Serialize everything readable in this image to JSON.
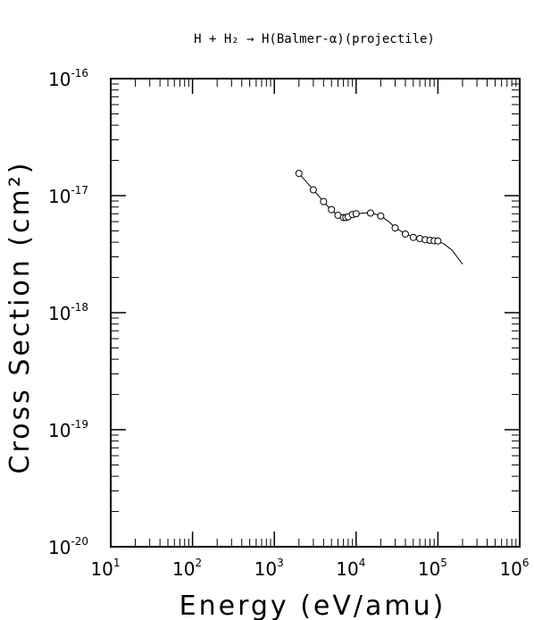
{
  "chart_data": {
    "type": "scatter",
    "title": "H + H₂ → H(Balmer-α)(projectile)",
    "xlabel": "Energy (eV/amu)",
    "ylabel": "Cross Section (cm²)",
    "xscale": "log",
    "yscale": "log",
    "xlim": [
      10,
      1000000
    ],
    "ylim": [
      1e-20,
      1e-16
    ],
    "grid": false,
    "x_ticks": [
      {
        "base": "10",
        "exp": "1",
        "value": 10
      },
      {
        "base": "10",
        "exp": "2",
        "value": 100
      },
      {
        "base": "10",
        "exp": "3",
        "value": 1000
      },
      {
        "base": "10",
        "exp": "4",
        "value": 10000
      },
      {
        "base": "10",
        "exp": "5",
        "value": 100000
      },
      {
        "base": "10",
        "exp": "6",
        "value": 1000000
      }
    ],
    "y_ticks": [
      {
        "base": "10",
        "exp": "-16",
        "value": 1e-16
      },
      {
        "base": "10",
        "exp": "-17",
        "value": 1e-17
      },
      {
        "base": "10",
        "exp": "-18",
        "value": 1e-18
      },
      {
        "base": "10",
        "exp": "-19",
        "value": 1e-19
      },
      {
        "base": "10",
        "exp": "-20",
        "value": 1e-20
      }
    ],
    "series": [
      {
        "kind": "points",
        "x": [
          2000,
          3000,
          4000,
          5000,
          6000,
          7000,
          7500,
          8000,
          9000,
          10000,
          15000,
          20000,
          30000,
          40000,
          50000,
          60000,
          70000,
          80000,
          90000,
          100000
        ],
        "y": [
          1.55e-17,
          1.12e-17,
          8.9e-18,
          7.6e-18,
          6.8e-18,
          6.5e-18,
          6.5e-18,
          6.6e-18,
          6.9e-18,
          7e-18,
          7.1e-18,
          6.7e-18,
          5.3e-18,
          4.7e-18,
          4.4e-18,
          4.3e-18,
          4.2e-18,
          4.15e-18,
          4.12e-18,
          4.1e-18
        ]
      },
      {
        "kind": "line",
        "x": [
          2000,
          3000,
          4000,
          5000,
          6000,
          7000,
          8000,
          9000,
          10000,
          12000,
          15000,
          20000,
          25000,
          30000,
          40000,
          50000,
          60000,
          70000,
          80000,
          90000,
          100000,
          120000,
          150000,
          200000
        ],
        "y": [
          1.55e-17,
          1.12e-17,
          8.9e-18,
          7.5e-18,
          6.8e-18,
          6.6e-18,
          6.6e-18,
          6.8e-18,
          6.95e-18,
          7.1e-18,
          7.15e-18,
          6.75e-18,
          6e-18,
          5.35e-18,
          4.7e-18,
          4.45e-18,
          4.3e-18,
          4.22e-18,
          4.16e-18,
          4.12e-18,
          4.08e-18,
          3.85e-18,
          3.4e-18,
          2.6e-18
        ]
      }
    ]
  }
}
